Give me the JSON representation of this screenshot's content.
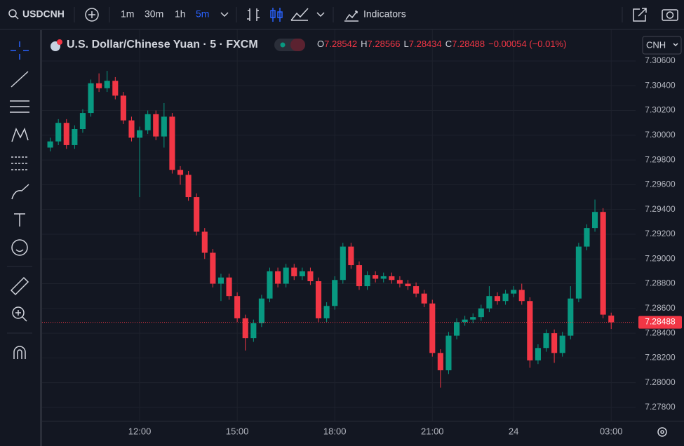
{
  "ui": {
    "symbol": "USDCNH",
    "intervals": [
      "1m",
      "30m",
      "1h",
      "5m"
    ],
    "indicators": "Indicators",
    "currency": "CNH"
  },
  "chart_data": {
    "type": "candlestick",
    "title": "U.S. Dollar/Chinese Yuan · 5 · FXCM",
    "legend": {
      "open_label": "O",
      "open": 7.28542,
      "high_label": "H",
      "high": 7.28566,
      "low_label": "L",
      "low": 7.28434,
      "close_label": "C",
      "close": 7.28488,
      "change": "−0.00054 (−0.01%)"
    },
    "up_color": "#089981",
    "down_color": "#f23645",
    "open": [
      7.299,
      7.2995,
      7.301,
      7.2992,
      7.3005,
      7.3018,
      7.3042,
      7.3038,
      7.3044,
      7.3032,
      7.3012,
      7.2998,
      7.3004,
      7.3017,
      7.2999,
      7.3015,
      7.2972,
      7.2968,
      7.295,
      7.2922,
      7.2905,
      7.288,
      7.2885,
      7.287,
      7.2852,
      7.2836,
      7.2848,
      7.2868,
      7.289,
      7.288,
      7.2893,
      7.2886,
      7.289,
      7.2882,
      7.2852,
      7.2862,
      7.2883,
      7.291,
      7.2895,
      7.2878,
      7.2887,
      7.2884,
      7.2886,
      7.2883,
      7.288,
      7.2878,
      7.2872,
      7.2864,
      7.2824,
      7.281,
      7.2838,
      7.2849,
      7.2851,
      7.2853,
      7.286,
      7.287,
      7.2866,
      7.2872,
      7.2875,
      7.2866,
      7.2818,
      7.2828,
      7.284,
      7.2824,
      7.2838,
      7.2868,
      7.291,
      7.2925,
      7.2938,
      7.28542
    ],
    "high": [
      7.2998,
      7.3013,
      7.3013,
      7.3008,
      7.3021,
      7.3045,
      7.305,
      7.3052,
      7.3047,
      7.3035,
      7.3015,
      7.3007,
      7.302,
      7.302,
      7.3026,
      7.3018,
      7.2975,
      7.2971,
      7.2953,
      7.2925,
      7.2908,
      7.2888,
      7.2888,
      7.2873,
      7.2855,
      7.2851,
      7.2871,
      7.2893,
      7.2893,
      7.2896,
      7.2896,
      7.2893,
      7.2893,
      7.2885,
      7.2865,
      7.2886,
      7.2913,
      7.2913,
      7.2898,
      7.289,
      7.289,
      7.2889,
      7.2889,
      7.2886,
      7.2883,
      7.2881,
      7.2875,
      7.2867,
      7.2827,
      7.2841,
      7.2852,
      7.2854,
      7.2856,
      7.2863,
      7.2878,
      7.2873,
      7.2875,
      7.2878,
      7.288,
      7.2869,
      7.2831,
      7.2843,
      7.2843,
      7.2841,
      7.2878,
      7.2913,
      7.2928,
      7.2948,
      7.2941,
      7.28566
    ],
    "low": [
      7.2987,
      7.2992,
      7.2989,
      7.2989,
      7.3002,
      7.3015,
      7.3035,
      7.3035,
      7.3029,
      7.3009,
      7.2995,
      7.295,
      7.3001,
      7.2996,
      7.299,
      7.2969,
      7.296,
      7.2947,
      7.2919,
      7.29,
      7.2877,
      7.2866,
      7.2867,
      7.2849,
      7.2826,
      7.2833,
      7.2845,
      7.2865,
      7.2877,
      7.2877,
      7.2883,
      7.2883,
      7.2879,
      7.2849,
      7.2849,
      7.2859,
      7.288,
      7.2892,
      7.2875,
      7.2875,
      7.2881,
      7.2881,
      7.288,
      7.2877,
      7.2875,
      7.2869,
      7.2861,
      7.2821,
      7.2796,
      7.2807,
      7.2835,
      7.2846,
      7.2848,
      7.285,
      7.2857,
      7.2863,
      7.2863,
      7.2869,
      7.2863,
      7.2812,
      7.2815,
      7.2825,
      7.2816,
      7.2821,
      7.2835,
      7.2865,
      7.2907,
      7.2922,
      7.2852,
      7.28434
    ],
    "close": [
      7.2995,
      7.301,
      7.2992,
      7.3005,
      7.3018,
      7.3042,
      7.3038,
      7.3044,
      7.3032,
      7.3012,
      7.2998,
      7.3004,
      7.3017,
      7.2999,
      7.3015,
      7.2972,
      7.2968,
      7.295,
      7.2922,
      7.2905,
      7.288,
      7.2885,
      7.287,
      7.2852,
      7.2836,
      7.2848,
      7.2868,
      7.289,
      7.288,
      7.2893,
      7.2886,
      7.289,
      7.2882,
      7.2852,
      7.2862,
      7.2883,
      7.291,
      7.2895,
      7.2878,
      7.2887,
      7.2884,
      7.2886,
      7.2883,
      7.288,
      7.2878,
      7.2872,
      7.2864,
      7.2824,
      7.281,
      7.2838,
      7.2849,
      7.2851,
      7.2853,
      7.286,
      7.287,
      7.2866,
      7.2872,
      7.2875,
      7.2866,
      7.2818,
      7.2828,
      7.284,
      7.2824,
      7.2838,
      7.2868,
      7.291,
      7.2925,
      7.2938,
      7.2855,
      7.28488
    ],
    "xlim": [
      -1,
      72
    ],
    "xticks": [
      {
        "value": 11,
        "label": "12:00"
      },
      {
        "value": 23,
        "label": "15:00"
      },
      {
        "value": 35,
        "label": "18:00"
      },
      {
        "value": 47,
        "label": "21:00"
      },
      {
        "value": 57,
        "label": "24"
      },
      {
        "value": 69,
        "label": "03:00"
      }
    ],
    "ylim": [
      7.27692,
      7.30855
    ],
    "yticks": [
      {
        "value": 7.306,
        "label": "7.30600"
      },
      {
        "value": 7.304,
        "label": "7.30400"
      },
      {
        "value": 7.302,
        "label": "7.30200"
      },
      {
        "value": 7.3,
        "label": "7.30000"
      },
      {
        "value": 7.298,
        "label": "7.29800"
      },
      {
        "value": 7.296,
        "label": "7.29600"
      },
      {
        "value": 7.294,
        "label": "7.29400"
      },
      {
        "value": 7.292,
        "label": "7.29200"
      },
      {
        "value": 7.29,
        "label": "7.29000"
      },
      {
        "value": 7.288,
        "label": "7.28800"
      },
      {
        "value": 7.286,
        "label": "7.28600"
      },
      {
        "value": 7.284,
        "label": "7.28400"
      },
      {
        "value": 7.282,
        "label": "7.28200"
      },
      {
        "value": 7.28,
        "label": "7.28000"
      },
      {
        "value": 7.278,
        "label": "7.27800"
      }
    ],
    "last_price": {
      "value": 7.28488,
      "label": "7.28488"
    },
    "grid": true
  }
}
